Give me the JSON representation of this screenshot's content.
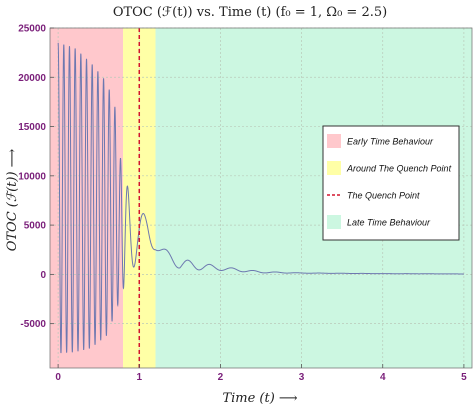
{
  "chart_data": {
    "type": "line",
    "title": "OTOC (ℱ(t)) vs. Time (t) (f₀ = 1, Ω₀ = 2.5)",
    "xlabel": "Time (t)  ⟶",
    "ylabel": "OTOC (ℱ(t))  ⟶",
    "xlim": [
      -0.1,
      5.1
    ],
    "ylim": [
      -9500,
      25000
    ],
    "xticks": [
      0,
      1,
      2,
      3,
      4,
      5
    ],
    "xtick_labels": [
      "0",
      "1",
      "2",
      "3",
      "4",
      "5"
    ],
    "yticks": [
      -5000,
      0,
      5000,
      10000,
      15000,
      20000,
      25000
    ],
    "ytick_labels": [
      "-5000",
      "0",
      "5000",
      "10000",
      "15000",
      "20000",
      "25000"
    ],
    "grid": true,
    "legend_position": "right",
    "regions": [
      {
        "name": "Early Time Behaviour",
        "x": [
          -0.1,
          0.8
        ],
        "color": "#ffc8cc"
      },
      {
        "name": "Around The Quench Point",
        "x": [
          0.8,
          1.2
        ],
        "color": "#ffffa6"
      },
      {
        "name": "Late Time Behaviour",
        "x": [
          1.2,
          5.1
        ],
        "color": "#ccf7e1"
      }
    ],
    "vline": {
      "name": "The Quench Point",
      "x": 1.0,
      "color": "#d2162f"
    },
    "series": [
      {
        "color": "#6d78b0",
        "oscillation_envelope": {
          "t": [
            0.0,
            0.2,
            0.4,
            0.6,
            0.7,
            0.8,
            0.9,
            1.0,
            1.1,
            1.2,
            1.5,
            2.0,
            2.5,
            3.0,
            4.0,
            5.0
          ],
          "max": [
            23500,
            23000,
            21500,
            19500,
            17000,
            9500,
            8500,
            7000,
            5500,
            3200,
            1600,
            800,
            300,
            150,
            80,
            50
          ],
          "min": [
            -8000,
            -7900,
            -7500,
            -6200,
            -4000,
            -1500,
            300,
            1600,
            2500,
            2500,
            500,
            400,
            150,
            120,
            70,
            40
          ]
        },
        "period_early": 0.07,
        "period_late": 0.27
      }
    ],
    "legend": [
      {
        "label": "Early Time Behaviour",
        "kind": "box",
        "color": "#ffc8cc"
      },
      {
        "label": "Around The Quench Point",
        "kind": "box",
        "color": "#ffffa6"
      },
      {
        "label": "The Quench Point",
        "kind": "line",
        "color": "#d2162f"
      },
      {
        "label": "Late Time Behaviour",
        "kind": "box",
        "color": "#ccf7e1"
      }
    ]
  }
}
